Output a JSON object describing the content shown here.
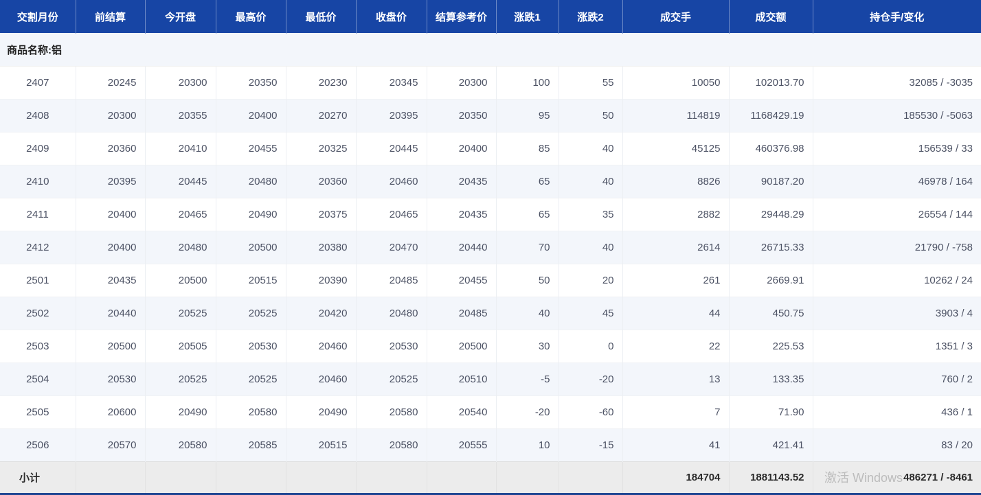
{
  "table": {
    "columns": [
      {
        "id": "delivery-month",
        "label": "交割月份"
      },
      {
        "id": "prev-settlement",
        "label": "前结算"
      },
      {
        "id": "open",
        "label": "今开盘"
      },
      {
        "id": "high",
        "label": "最高价"
      },
      {
        "id": "low",
        "label": "最低价"
      },
      {
        "id": "close",
        "label": "收盘价"
      },
      {
        "id": "settlement-ref",
        "label": "结算参考价"
      },
      {
        "id": "change1",
        "label": "涨跌1"
      },
      {
        "id": "change2",
        "label": "涨跌2"
      },
      {
        "id": "volume",
        "label": "成交手"
      },
      {
        "id": "turnover",
        "label": "成交额"
      },
      {
        "id": "open-interest",
        "label": "持仓手/变化"
      }
    ],
    "group_label": "商品名称:铝",
    "rows": [
      [
        "2407",
        "20245",
        "20300",
        "20350",
        "20230",
        "20345",
        "20300",
        "100",
        "55",
        "10050",
        "102013.70",
        "32085 / -3035"
      ],
      [
        "2408",
        "20300",
        "20355",
        "20400",
        "20270",
        "20395",
        "20350",
        "95",
        "50",
        "114819",
        "1168429.19",
        "185530 / -5063"
      ],
      [
        "2409",
        "20360",
        "20410",
        "20455",
        "20325",
        "20445",
        "20400",
        "85",
        "40",
        "45125",
        "460376.98",
        "156539 / 33"
      ],
      [
        "2410",
        "20395",
        "20445",
        "20480",
        "20360",
        "20460",
        "20435",
        "65",
        "40",
        "8826",
        "90187.20",
        "46978 / 164"
      ],
      [
        "2411",
        "20400",
        "20465",
        "20490",
        "20375",
        "20465",
        "20435",
        "65",
        "35",
        "2882",
        "29448.29",
        "26554 / 144"
      ],
      [
        "2412",
        "20400",
        "20480",
        "20500",
        "20380",
        "20470",
        "20440",
        "70",
        "40",
        "2614",
        "26715.33",
        "21790 / -758"
      ],
      [
        "2501",
        "20435",
        "20500",
        "20515",
        "20390",
        "20485",
        "20455",
        "50",
        "20",
        "261",
        "2669.91",
        "10262 / 24"
      ],
      [
        "2502",
        "20440",
        "20525",
        "20525",
        "20420",
        "20480",
        "20485",
        "40",
        "45",
        "44",
        "450.75",
        "3903 / 4"
      ],
      [
        "2503",
        "20500",
        "20505",
        "20530",
        "20460",
        "20530",
        "20500",
        "30",
        "0",
        "22",
        "225.53",
        "1351 / 3"
      ],
      [
        "2504",
        "20530",
        "20525",
        "20525",
        "20460",
        "20525",
        "20510",
        "-5",
        "-20",
        "13",
        "133.35",
        "760 / 2"
      ],
      [
        "2505",
        "20600",
        "20490",
        "20580",
        "20490",
        "20580",
        "20540",
        "-20",
        "-60",
        "7",
        "71.90",
        "436 / 1"
      ],
      [
        "2506",
        "20570",
        "20580",
        "20585",
        "20515",
        "20580",
        "20555",
        "10",
        "-15",
        "41",
        "421.41",
        "83 / 20"
      ]
    ],
    "footer": [
      "小计",
      "",
      "",
      "",
      "",
      "",
      "",
      "",
      "",
      "184704",
      "1881143.52",
      "486271 / -8461"
    ]
  },
  "colors": {
    "header_bg": "#1745a5",
    "group_bg": "#fbac74",
    "stripe_bg": "#f3f6fb",
    "footer_bg": "#ececec",
    "bottom_border": "#1f4693",
    "data_text": "#4c5264"
  },
  "watermark": {
    "text": "激活 Windows"
  }
}
